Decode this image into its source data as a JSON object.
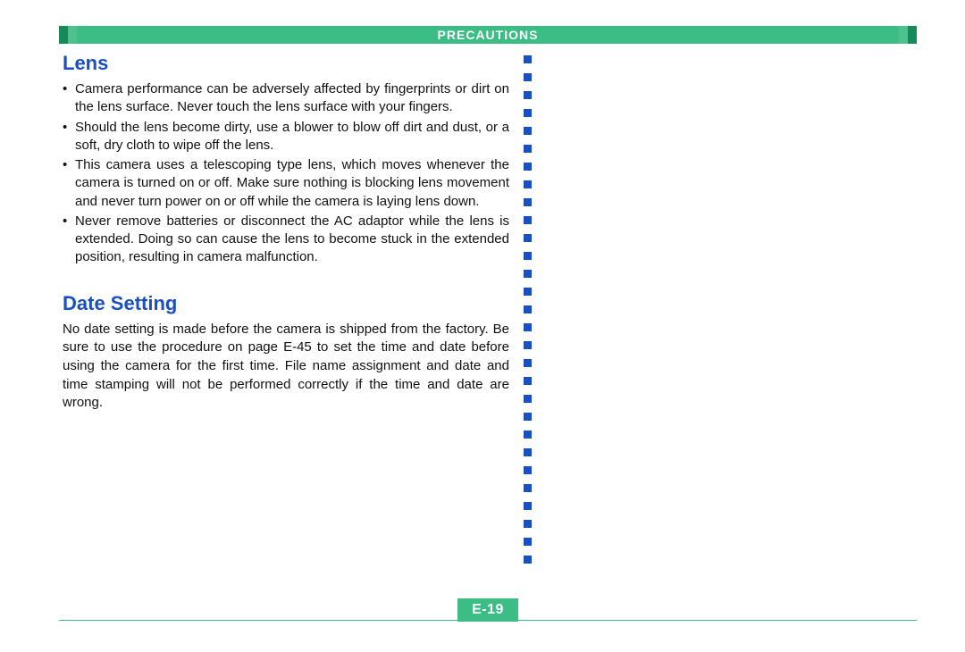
{
  "header": {
    "title": "PRECAUTIONS",
    "bar_color": "#3dbd86",
    "accent_dark": "#168a5a",
    "accent_light": "#4fc18e",
    "title_color": "#ffffff",
    "title_fontsize": 14
  },
  "divider": {
    "dot_color": "#1a4fc2",
    "dot_size": 9,
    "dot_gap": 11,
    "dot_count": 29
  },
  "sections": {
    "lens": {
      "title": "Lens",
      "title_color": "#1a4fc2",
      "title_fontsize": 22,
      "bullets": [
        "Camera performance can be adversely affected by fingerprints or dirt on the lens surface. Never touch the lens surface with your fingers.",
        "Should the lens become dirty, use a blower to blow off dirt and dust, or a soft, dry cloth to wipe off the lens.",
        "This camera uses a telescoping type lens, which moves whenever the camera is turned on or off. Make sure nothing is blocking lens movement and never turn power on or off while the camera is laying lens down.",
        "Never remove batteries or disconnect the AC adaptor while the lens is extended. Doing so can cause the lens to become stuck in the extended position, resulting in camera malfunction."
      ]
    },
    "date": {
      "title": "Date Setting",
      "title_color": "#1a4fc2",
      "title_fontsize": 22,
      "body": "No date setting is made before the camera is shipped from the factory. Be sure to use the procedure on page E-45 to set the time and date before using the camera for the first time. File name assignment and date and time stamping will not be performed correctly if the time and date are wrong."
    }
  },
  "footer": {
    "page_number": "E-19",
    "line_color": "#3dbd86",
    "badge_bg": "#3dbd86",
    "badge_text_color": "#ffffff",
    "badge_fontsize": 16
  },
  "body_text": {
    "color": "#111111",
    "fontsize": 15
  }
}
